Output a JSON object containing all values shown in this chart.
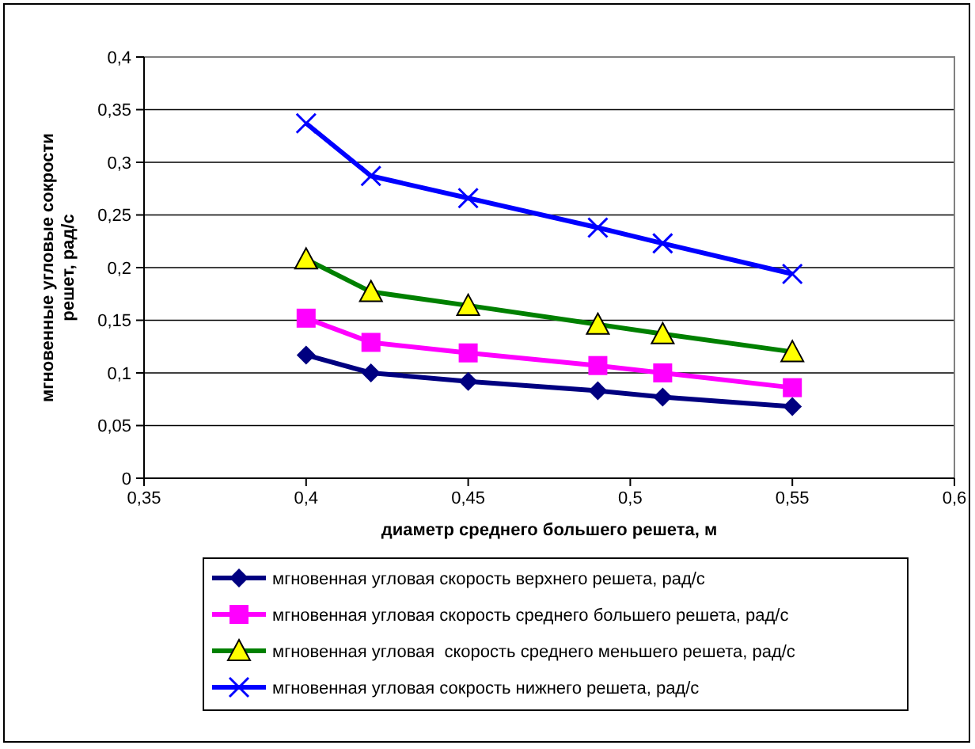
{
  "chart_data": {
    "type": "line",
    "xlabel": "диаметр среднего большего решета, м",
    "ylabel": "мгновенные угловые сокрости решет, рад/с",
    "x": [
      0.4,
      0.42,
      0.45,
      0.49,
      0.51,
      0.55
    ],
    "xlim": [
      0.35,
      0.6
    ],
    "xticks": [
      {
        "value": 0.35,
        "label": "0,35"
      },
      {
        "value": 0.4,
        "label": "0,4"
      },
      {
        "value": 0.45,
        "label": "0,45"
      },
      {
        "value": 0.5,
        "label": "0,5"
      },
      {
        "value": 0.55,
        "label": "0,55"
      },
      {
        "value": 0.6,
        "label": "0,6"
      }
    ],
    "ylim": [
      0,
      0.4
    ],
    "yticks": [
      0,
      {
        "value": 0.05,
        "label": "0,05"
      },
      {
        "value": 0.1,
        "label": "0,1"
      },
      {
        "value": 0.15,
        "label": "0,15"
      },
      {
        "value": 0.2,
        "label": "0,2"
      },
      {
        "value": 0.25,
        "label": "0,25"
      },
      {
        "value": 0.3,
        "label": "0,3"
      },
      {
        "value": 0.35,
        "label": "0,35"
      },
      {
        "value": 0.4,
        "label": "0,4"
      }
    ],
    "grid": "y",
    "legend": "bottom",
    "line_style": "solid",
    "series": [
      {
        "name": "мгновенная угловая скорость верхнего решета, рад/с",
        "color": "#000080",
        "marker": "diamond",
        "values": [
          0.117,
          0.1,
          0.092,
          0.083,
          0.077,
          0.068
        ]
      },
      {
        "name": "мгновенная угловая скорость среднего большего решета, рад/с",
        "color": "#ff00ff",
        "marker": "square",
        "values": [
          0.152,
          0.129,
          0.119,
          0.107,
          0.1,
          0.086
        ]
      },
      {
        "name": "мгновенная угловая  скорость среднего меньшего решета, рад/с",
        "color": "#008000",
        "marker": "triangle",
        "values": [
          0.208,
          0.177,
          0.164,
          0.146,
          0.137,
          0.12
        ]
      },
      {
        "name": "мгновенная угловая сокрость нижнего решета, рад/с",
        "color": "#0000ff",
        "marker": "cross",
        "values": [
          0.337,
          0.287,
          0.266,
          0.238,
          0.223,
          0.194
        ]
      }
    ]
  }
}
